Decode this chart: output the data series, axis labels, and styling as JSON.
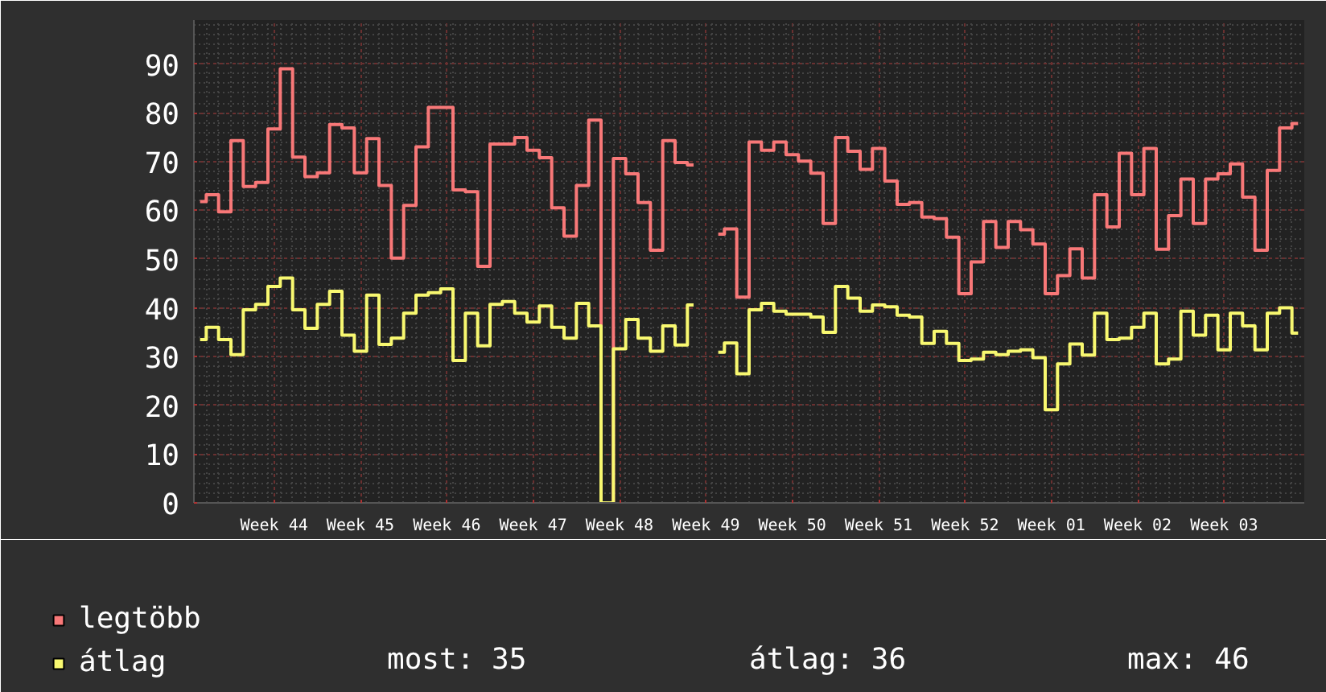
{
  "chart_data": {
    "type": "step",
    "categories": [
      null,
      null,
      null,
      null,
      null,
      null,
      "Week 44",
      null,
      null,
      null,
      null,
      null,
      null,
      "Week 45",
      null,
      null,
      null,
      null,
      null,
      null,
      "Week 46",
      null,
      null,
      null,
      null,
      null,
      null,
      "Week 47",
      null,
      null,
      null,
      null,
      null,
      null,
      "Week 48",
      null,
      null,
      null,
      null,
      null,
      null,
      "Week 49",
      null,
      null,
      null,
      null,
      null,
      null,
      "Week 50",
      null,
      null,
      null,
      null,
      null,
      null,
      "Week 51",
      null,
      null,
      null,
      null,
      null,
      null,
      "Week 52",
      null,
      null,
      null,
      null,
      null,
      null,
      "Week 01",
      null,
      null,
      null,
      null,
      null,
      null,
      "Week 02",
      null,
      null,
      null,
      null,
      null,
      null,
      "Week 03",
      null,
      null,
      null,
      null,
      null,
      null
    ],
    "series": [
      {
        "name": "legtöbb",
        "color": "#f87878",
        "values": [
          61.8,
          63.2,
          59.7,
          74.3,
          64.9,
          65.7,
          76.7,
          89,
          70.9,
          66.9,
          67.7,
          77.6,
          76.9,
          67.7,
          74.7,
          65.1,
          50.2,
          61.0,
          73.0,
          81.1,
          81.1,
          64.2,
          63.8,
          48.5,
          73.6,
          73.6,
          74.9,
          72.3,
          70.8,
          60.5,
          54.7,
          65.1,
          78.5,
          0,
          70.6,
          67.5,
          61.6,
          51.8,
          74.3,
          69.8,
          69.3,
          null,
          55.1,
          56.2,
          42.2,
          74.0,
          72.3,
          74.0,
          71.4,
          70.1,
          67.6,
          57.3,
          74.9,
          72.1,
          68.4,
          72.7,
          66.0,
          61.2,
          61.6,
          58.6,
          58.3,
          54.5,
          42.9,
          49.4,
          57.7,
          52.4,
          57.7,
          56.0,
          53.1,
          42.9,
          46.6,
          52.1,
          46.1,
          63.2,
          56.6,
          71.7,
          63.2,
          72.7,
          52.0,
          58.9,
          66.4,
          57.3,
          66.4,
          67.5,
          69.5,
          62.7,
          51.8,
          68.2,
          76.9,
          77.8
        ]
      },
      {
        "name": "átlag",
        "color": "#f8f870",
        "values": [
          33.5,
          36.0,
          33.5,
          30.4,
          39.6,
          40.7,
          44.4,
          46.1,
          39.6,
          35.8,
          40.7,
          43.4,
          34.4,
          31.1,
          42.6,
          32.5,
          33.8,
          38.9,
          42.6,
          43.1,
          43.9,
          29.2,
          38.9,
          32.2,
          40.7,
          41.3,
          38.9,
          37.1,
          40.4,
          36.0,
          33.8,
          40.9,
          36.3,
          0,
          31.6,
          37.6,
          33.8,
          31.1,
          36.3,
          32.4,
          40.6,
          null,
          30.9,
          32.8,
          26.5,
          39.6,
          40.9,
          39.3,
          38.7,
          38.7,
          38.1,
          35.0,
          44.4,
          42.0,
          39.3,
          40.6,
          40.2,
          38.5,
          38.1,
          32.7,
          35.2,
          32.7,
          29.2,
          29.5,
          30.9,
          30.4,
          31.1,
          31.4,
          29.8,
          19.1,
          28.5,
          32.6,
          30.3,
          38.9,
          33.5,
          33.8,
          36.0,
          38.9,
          28.5,
          29.5,
          39.3,
          34.4,
          38.5,
          31.4,
          38.9,
          36.3,
          31.4,
          38.9,
          40.0,
          34.8
        ]
      }
    ],
    "ylim": [
      0,
      99
    ],
    "yticks": [
      0,
      10,
      20,
      30,
      40,
      50,
      60,
      70,
      80,
      90
    ],
    "grid": true,
    "legend": "bottom",
    "annotations": [
      "most: 35",
      "átlag: 36",
      "max: 46"
    ]
  }
}
